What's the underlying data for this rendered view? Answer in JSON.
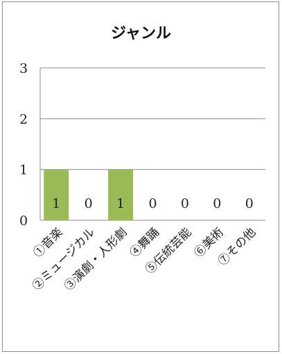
{
  "chart_data": {
    "type": "bar",
    "title": "ジャンル",
    "categories": [
      "①音楽",
      "②ミュージカル",
      "③演劇・人形劇",
      "④舞踊",
      "⑤伝統芸能",
      "⑥美術",
      "⑦その他"
    ],
    "values": [
      1,
      0,
      1,
      0,
      0,
      0,
      0
    ],
    "data_labels": [
      "1",
      "0",
      "1",
      "0",
      "0",
      "0",
      "0"
    ],
    "ylim": [
      0,
      3
    ],
    "yticks": [
      0,
      1,
      2,
      3
    ],
    "ytick_labels": [
      "0",
      "1",
      "2",
      "3"
    ],
    "grid": true,
    "legend": "none",
    "bar_color": "#9bbb59",
    "grid_color": "#8c8c8c"
  }
}
